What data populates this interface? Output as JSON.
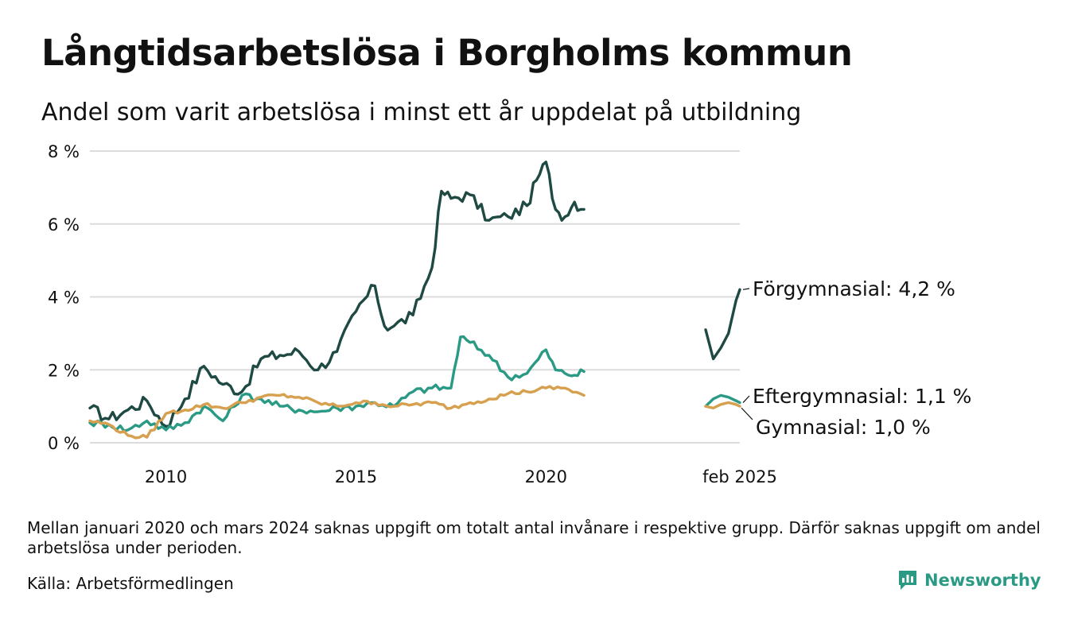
{
  "title": "Långtidsarbetslösa i Borgholms kommun",
  "subtitle": "Andel som varit arbetslösa i minst ett år uppdelat på utbildning",
  "note": "Mellan januari 2020 och mars 2024 saknas uppgift om totalt antal invånare i respektive grupp. Därför saknas uppgift om andel arbetslösa under perioden.",
  "source": "Källa: Arbetsförmedlingen",
  "brand": {
    "name": "Newsworthy",
    "icon": "bar-chart-logo-icon",
    "color": "#2a9a85"
  },
  "chart_data": {
    "type": "line",
    "ylim": [
      0,
      8
    ],
    "yticks": [
      {
        "value": 0,
        "label": "0 %"
      },
      {
        "value": 2,
        "label": "2 %"
      },
      {
        "value": 4,
        "label": "4 %"
      },
      {
        "value": 6,
        "label": "6 %"
      },
      {
        "value": 8,
        "label": "8 %"
      }
    ],
    "xlim": [
      2008.0,
      2025.1
    ],
    "xticks": [
      {
        "value": 2010,
        "label": "2010"
      },
      {
        "value": 2015,
        "label": "2015"
      },
      {
        "value": 2020,
        "label": "2020"
      },
      {
        "value": 2025.1,
        "label": "feb 2025"
      }
    ],
    "grid": true,
    "gap": [
      2021.0,
      2024.2
    ],
    "series": [
      {
        "name": "Förgymnasial",
        "label": "Förgymnasial: 4,2 %",
        "color": "#1f4a44",
        "x": [
          2008.0,
          2008.5,
          2009.0,
          2009.5,
          2010.0,
          2010.5,
          2011.0,
          2011.5,
          2012.0,
          2012.5,
          2013.0,
          2013.5,
          2014.0,
          2014.5,
          2015.0,
          2015.5,
          2015.75,
          2016.0,
          2016.5,
          2017.0,
          2017.25,
          2017.5,
          2018.0,
          2018.5,
          2019.0,
          2019.5,
          2019.75,
          2020.0,
          2020.25,
          2020.5,
          2020.75,
          2021.0,
          2024.2,
          2024.4,
          2024.6,
          2024.8,
          2025.0,
          2025.1
        ],
        "y": [
          0.95,
          0.65,
          0.9,
          1.15,
          0.45,
          1.2,
          2.1,
          1.6,
          1.4,
          2.3,
          2.4,
          2.5,
          2.0,
          2.5,
          3.6,
          4.3,
          3.2,
          3.2,
          3.5,
          4.8,
          6.9,
          6.7,
          6.8,
          6.1,
          6.2,
          6.5,
          7.2,
          7.7,
          6.4,
          6.2,
          6.6,
          6.4,
          3.1,
          2.3,
          2.6,
          3.0,
          3.9,
          4.2
        ]
      },
      {
        "name": "Eftergymnasial",
        "label": "Eftergymnasial: 1,1 %",
        "color": "#2a9a85",
        "x": [
          2008.0,
          2008.5,
          2009.0,
          2009.5,
          2010.0,
          2010.5,
          2011.0,
          2011.5,
          2012.0,
          2012.5,
          2013.0,
          2013.5,
          2014.0,
          2014.5,
          2015.0,
          2015.5,
          2016.0,
          2016.5,
          2017.0,
          2017.5,
          2017.75,
          2018.0,
          2018.5,
          2019.0,
          2019.5,
          2020.0,
          2020.25,
          2020.5,
          2020.75,
          2021.0,
          2024.2,
          2024.4,
          2024.6,
          2024.8,
          2025.0,
          2025.1
        ],
        "y": [
          0.55,
          0.5,
          0.35,
          0.6,
          0.35,
          0.55,
          1.0,
          0.6,
          1.3,
          1.2,
          1.0,
          0.9,
          0.85,
          0.95,
          1.0,
          1.1,
          1.0,
          1.4,
          1.5,
          1.5,
          2.9,
          2.75,
          2.4,
          1.8,
          1.9,
          2.55,
          2.0,
          1.9,
          1.85,
          1.95,
          1.0,
          1.2,
          1.3,
          1.25,
          1.15,
          1.1
        ]
      },
      {
        "name": "Gymnasial",
        "label": "Gymnasial: 1,0 %",
        "color": "#d6a04e",
        "x": [
          2008.0,
          2008.5,
          2009.0,
          2009.5,
          2010.0,
          2010.5,
          2011.0,
          2011.5,
          2012.0,
          2012.5,
          2013.0,
          2013.5,
          2014.0,
          2014.5,
          2015.0,
          2015.5,
          2016.0,
          2016.5,
          2017.0,
          2017.5,
          2018.0,
          2018.5,
          2019.0,
          2019.5,
          2020.0,
          2020.5,
          2021.0,
          2024.2,
          2024.4,
          2024.6,
          2024.8,
          2025.0,
          2025.1
        ],
        "y": [
          0.6,
          0.5,
          0.2,
          0.15,
          0.8,
          0.9,
          1.05,
          0.95,
          1.1,
          1.25,
          1.3,
          1.25,
          1.1,
          1.0,
          1.1,
          1.1,
          1.0,
          1.05,
          1.1,
          0.95,
          1.1,
          1.2,
          1.35,
          1.4,
          1.5,
          1.5,
          1.3,
          1.0,
          0.95,
          1.05,
          1.1,
          1.05,
          1.0
        ]
      }
    ]
  }
}
